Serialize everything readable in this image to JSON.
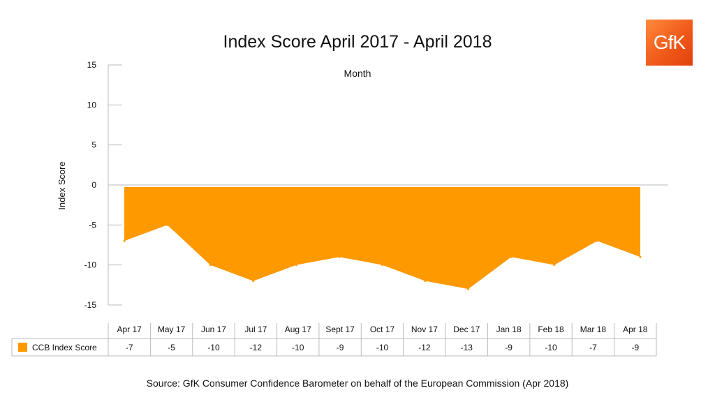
{
  "logo": {
    "text": "GfK",
    "color": "#f26522"
  },
  "source": "Source: GfK Consumer Confidence Barometer on behalf of the European Commission (Apr 2018)",
  "chart_data": {
    "type": "area",
    "title": "Index Score April 2017 - April 2018",
    "xlabel": "Month",
    "ylabel": "Index Score",
    "ylim": [
      -15,
      15
    ],
    "yticks": [
      15,
      10,
      5,
      0,
      -5,
      -10,
      -15
    ],
    "grid": false,
    "categories": [
      "Apr 17",
      "May 17",
      "Jun 17",
      "Jul 17",
      "Aug 17",
      "Sept 17",
      "Oct 17",
      "Nov 17",
      "Dec 17",
      "Jan 18",
      "Feb 18",
      "Mar 18",
      "Apr 18"
    ],
    "series": [
      {
        "name": "CCB Index Score",
        "color": "#ff9900",
        "values": [
          -7,
          -5,
          -10,
          -12,
          -10,
          -9,
          -10,
          -12,
          -13,
          -9,
          -10,
          -7,
          -9
        ]
      }
    ],
    "legend": "data-table-left"
  }
}
